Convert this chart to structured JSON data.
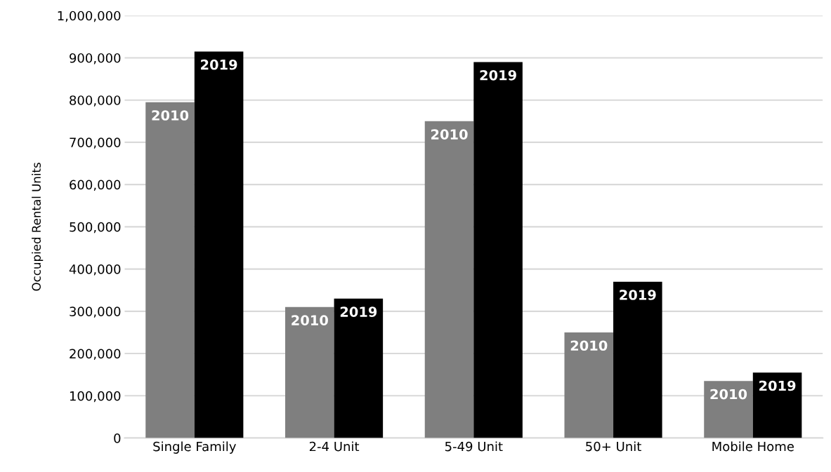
{
  "chart_data": {
    "type": "bar",
    "ylabel": "Occupied Rental Units",
    "categories": [
      "Single Family",
      "2-4 Unit",
      "5-49 Unit",
      "50+ Unit",
      "Mobile Home"
    ],
    "series": [
      {
        "name": "2010",
        "color": "#7f7f7f",
        "values": [
          795000,
          310000,
          750000,
          250000,
          135000
        ]
      },
      {
        "name": "2019",
        "color": "#000000",
        "values": [
          915000,
          330000,
          890000,
          370000,
          155000
        ]
      }
    ],
    "ylim": [
      0,
      1000000
    ],
    "yticks": [
      0,
      {
        "value": 100000,
        "label": "100,000"
      },
      {
        "value": 200000,
        "label": "200,000"
      },
      {
        "value": 300000,
        "label": "300,000"
      },
      {
        "value": 400000,
        "label": "400,000"
      },
      {
        "value": 500000,
        "label": "500,000"
      },
      {
        "value": 600000,
        "label": "600,000"
      },
      {
        "value": 700000,
        "label": "700,000"
      },
      {
        "value": 800000,
        "label": "800,000"
      },
      {
        "value": 900000,
        "label": "900,000"
      },
      {
        "value": 1000000,
        "label": "1,000,000"
      }
    ],
    "grid": "y",
    "legend": false
  }
}
